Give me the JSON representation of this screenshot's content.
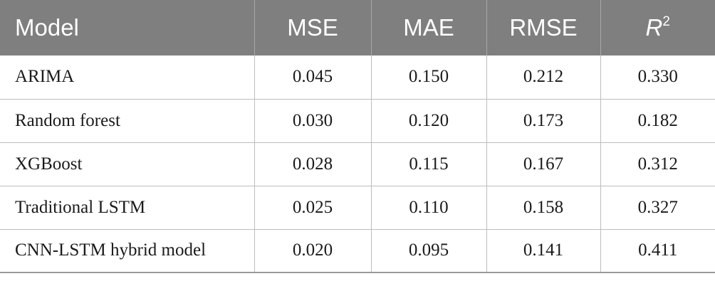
{
  "table": {
    "headers": {
      "model": "Model",
      "mse": "MSE",
      "mae": "MAE",
      "rmse": "RMSE",
      "r2_base": "R",
      "r2_sup": "2"
    },
    "rows": [
      {
        "model": "ARIMA",
        "mse": "0.045",
        "mae": "0.150",
        "rmse": "0.212",
        "r2": "0.330"
      },
      {
        "model": "Random forest",
        "mse": "0.030",
        "mae": "0.120",
        "rmse": "0.173",
        "r2": "0.182"
      },
      {
        "model": "XGBoost",
        "mse": "0.028",
        "mae": "0.115",
        "rmse": "0.167",
        "r2": "0.312"
      },
      {
        "model": "Traditional LSTM",
        "mse": "0.025",
        "mae": "0.110",
        "rmse": "0.158",
        "r2": "0.327"
      },
      {
        "model": "CNN-LSTM hybrid model",
        "mse": "0.020",
        "mae": "0.095",
        "rmse": "0.141",
        "r2": "0.411"
      }
    ]
  },
  "colors": {
    "header_bg": "#7f7f7f",
    "header_text": "#ffffff",
    "grid": "#bdbdbd"
  }
}
